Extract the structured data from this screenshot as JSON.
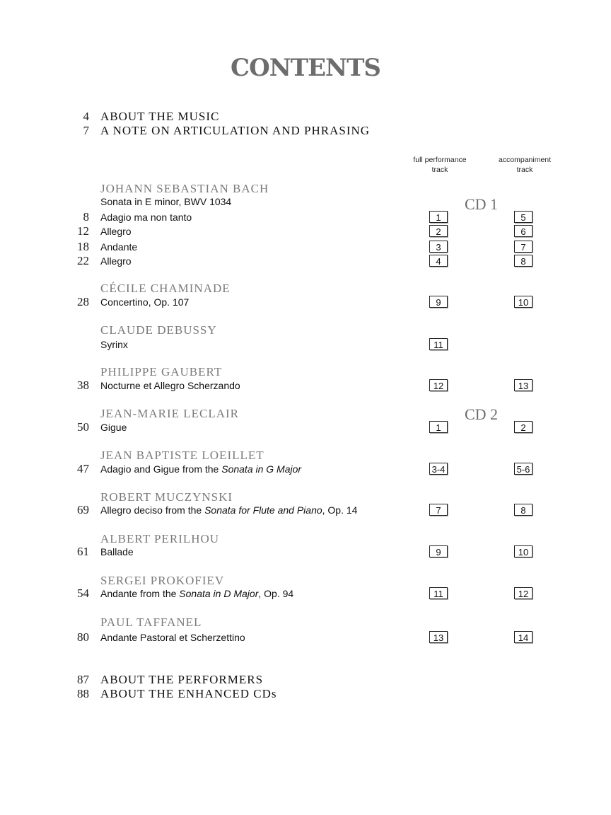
{
  "title": "CONTENTS",
  "front_matter": [
    {
      "page": "4",
      "label": "ABOUT THE MUSIC"
    },
    {
      "page": "7",
      "label": "A NOTE ON ARTICULATION AND PHRASING"
    }
  ],
  "column_headers": {
    "full": [
      "full performance",
      "track"
    ],
    "accompaniment": [
      "accompaniment",
      "track"
    ]
  },
  "cd_labels": [
    "CD 1",
    "CD 2"
  ],
  "composers": [
    {
      "name": "JOHANN SEBASTIAN BACH",
      "subtitle": "Sonata in E minor, BWV 1034",
      "works": [
        {
          "page": "8",
          "title": [
            {
              "t": "Adagio ma non tanto"
            }
          ],
          "full": "1",
          "acc": "5"
        },
        {
          "page": "12",
          "title": [
            {
              "t": "Allegro"
            }
          ],
          "full": "2",
          "acc": "6"
        },
        {
          "page": "18",
          "title": [
            {
              "t": "Andante"
            }
          ],
          "full": "3",
          "acc": "7"
        },
        {
          "page": "22",
          "title": [
            {
              "t": "Allegro"
            }
          ],
          "full": "4",
          "acc": "8"
        }
      ]
    },
    {
      "name": "CÉCILE CHAMINADE",
      "works": [
        {
          "page": "28",
          "title": [
            {
              "t": "Concertino, Op. 107"
            }
          ],
          "full": "9",
          "acc": "10"
        }
      ]
    },
    {
      "name": "CLAUDE DEBUSSY",
      "works": [
        {
          "page": "",
          "title": [
            {
              "t": "Syrinx"
            }
          ],
          "full": "11",
          "acc": ""
        }
      ]
    },
    {
      "name": "PHILIPPE GAUBERT",
      "works": [
        {
          "page": "38",
          "title": [
            {
              "t": "Nocturne et Allegro Scherzando"
            }
          ],
          "full": "12",
          "acc": "13"
        }
      ]
    },
    {
      "name": "JEAN-MARIE LECLAIR",
      "works": [
        {
          "page": "50",
          "title": [
            {
              "t": "Gigue"
            }
          ],
          "full": "1",
          "acc": "2"
        }
      ]
    },
    {
      "name": "JEAN BAPTISTE LOEILLET",
      "works": [
        {
          "page": "47",
          "title": [
            {
              "t": "Adagio and Gigue from the "
            },
            {
              "t": "Sonata in G Major",
              "i": true
            }
          ],
          "full": "3-4",
          "acc": "5-6"
        }
      ]
    },
    {
      "name": "ROBERT MUCZYNSKI",
      "works": [
        {
          "page": "69",
          "title": [
            {
              "t": "Allegro deciso from the "
            },
            {
              "t": "Sonata for Flute and Piano",
              "i": true
            },
            {
              "t": ", Op. 14"
            }
          ],
          "full": "7",
          "acc": "8"
        }
      ]
    },
    {
      "name": "ALBERT PERILHOU",
      "works": [
        {
          "page": "61",
          "title": [
            {
              "t": "Ballade"
            }
          ],
          "full": "9",
          "acc": "10"
        }
      ]
    },
    {
      "name": "SERGEI PROKOFIEV",
      "works": [
        {
          "page": "54",
          "title": [
            {
              "t": "Andante from the "
            },
            {
              "t": "Sonata in D Major",
              "i": true
            },
            {
              "t": ", Op. 94"
            }
          ],
          "full": "11",
          "acc": "12"
        }
      ]
    },
    {
      "name": "PAUL TAFFANEL",
      "works": [
        {
          "page": "80",
          "title": [
            {
              "t": "Andante Pastoral et Scherzettino"
            }
          ],
          "full": "13",
          "acc": "14"
        }
      ]
    }
  ],
  "back_matter": [
    {
      "page": "87",
      "label": "ABOUT THE PERFORMERS"
    },
    {
      "page": "88",
      "label": "ABOUT THE ENHANCED CDs"
    }
  ]
}
